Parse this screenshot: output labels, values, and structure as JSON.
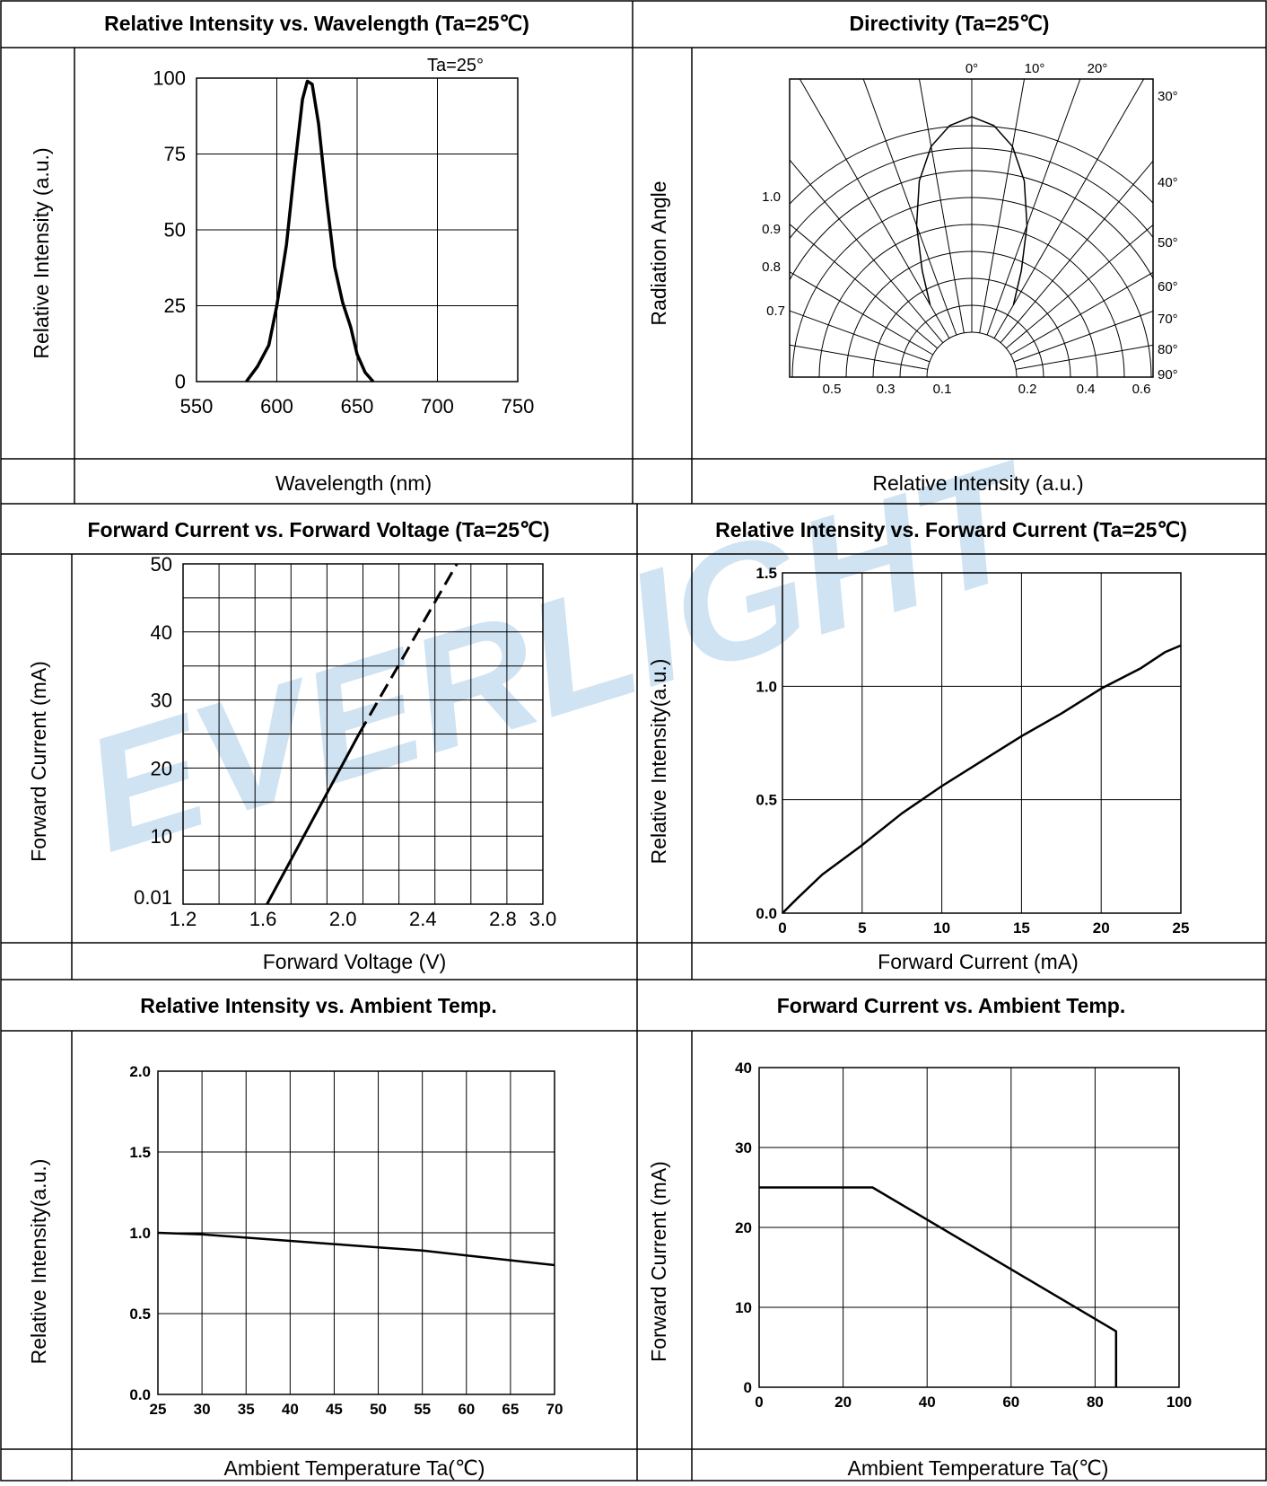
{
  "watermark": "EVERLIGHT",
  "colors": {
    "watermark": "#cfe3f3",
    "border": "#000000",
    "grid": "#000000",
    "curve": "#000000"
  },
  "panels": {
    "spectrum": {
      "title": "Relative Intensity vs. Wavelength (Ta=25℃)",
      "ylabel": "Relative Intensity (a.u.)",
      "xlabel": "Wavelength (nm)"
    },
    "directivity": {
      "title": "Directivity (Ta=25℃)",
      "ylabel": "Radiation Angle",
      "xlabel": "Relative Intensity (a.u.)"
    },
    "ifvf": {
      "title": "Forward Current vs. Forward Voltage (Ta=25℃)",
      "ylabel": "Forward Current (mA)",
      "xlabel": "Forward Voltage (V)"
    },
    "ivif": {
      "title": "Relative Intensity vs. Forward Current (Ta=25℃)",
      "ylabel": "Relative Intensity(a.u.)",
      "xlabel": "Forward Current (mA)"
    },
    "ivtemp": {
      "title": "Relative Intensity vs. Ambient Temp.",
      "ylabel": "Relative Intensity(a.u.)",
      "xlabel": "Ambient Temperature Ta(℃)"
    },
    "iftemp": {
      "title": "Forward Current vs. Ambient Temp.",
      "ylabel": "Forward Current (mA)",
      "xlabel": "Ambient Temperature Ta(℃)"
    }
  },
  "chart_data": [
    {
      "id": "spectrum",
      "type": "line",
      "annotation": "Ta=25°",
      "xlim": [
        550,
        750
      ],
      "ylim": [
        0,
        100
      ],
      "x_ticks": [
        "550",
        "600",
        "650",
        "700",
        "750"
      ],
      "y_ticks": [
        "0",
        "25",
        "50",
        "75",
        "100"
      ],
      "x": [
        581,
        588,
        595,
        600,
        606,
        611,
        616,
        619,
        622,
        626,
        631,
        636,
        641,
        646,
        650,
        655,
        660
      ],
      "y": [
        0,
        5,
        12,
        25,
        45,
        70,
        93,
        99,
        98,
        85,
        60,
        38,
        26,
        18,
        9,
        3,
        0
      ]
    },
    {
      "id": "directivity",
      "type": "polar",
      "angle_labels": [
        "0°",
        "10°",
        "20°",
        "30°",
        "40°",
        "50°",
        "60°",
        "70°",
        "80°",
        "90°"
      ],
      "radius_labels": [
        "1.0",
        "0.9",
        "0.8",
        "0.7"
      ],
      "bottom_labels_left": [
        "0.5",
        "0.3",
        "0.1"
      ],
      "bottom_labels_right": [
        "0.2",
        "0.4",
        "0.6"
      ],
      "angles_deg": [
        0,
        5,
        10,
        15,
        20,
        25,
        30
      ],
      "relative_intensity": [
        1.0,
        0.97,
        0.9,
        0.78,
        0.62,
        0.45,
        0.32
      ]
    },
    {
      "id": "ifvf",
      "type": "line",
      "xlim": [
        1.2,
        3.0
      ],
      "x_ticks": [
        "1.2",
        "1.6",
        "2.0",
        "2.4",
        "2.8",
        "3.0"
      ],
      "y_ticks": [
        "0.01",
        "10",
        "20",
        "30",
        "40",
        "50"
      ],
      "solid": {
        "x": [
          1.62,
          2.08
        ],
        "y": [
          0.01,
          25
        ]
      },
      "dashed": {
        "x": [
          2.08,
          2.57
        ],
        "y": [
          25,
          50
        ]
      }
    },
    {
      "id": "ivif",
      "type": "line",
      "xlim": [
        0,
        25
      ],
      "ylim": [
        0,
        1.5
      ],
      "x_ticks": [
        "0",
        "5",
        "10",
        "15",
        "20",
        "25"
      ],
      "y_ticks": [
        "0.0",
        "0.5",
        "1.0",
        "1.5"
      ],
      "x": [
        0,
        1,
        2.5,
        5,
        7.5,
        10,
        12.5,
        15,
        17.5,
        20,
        22.5,
        24,
        25
      ],
      "y": [
        0,
        0.07,
        0.17,
        0.3,
        0.44,
        0.56,
        0.67,
        0.78,
        0.88,
        0.99,
        1.08,
        1.15,
        1.18
      ]
    },
    {
      "id": "ivtemp",
      "type": "line",
      "xlim": [
        25,
        70
      ],
      "ylim": [
        0,
        2.0
      ],
      "x_ticks": [
        "25",
        "30",
        "35",
        "40",
        "45",
        "50",
        "55",
        "60",
        "65",
        "70"
      ],
      "y_ticks": [
        "0.0",
        "0.5",
        "1.0",
        "1.5",
        "2.0"
      ],
      "x": [
        25,
        30,
        35,
        40,
        45,
        50,
        55,
        60,
        65,
        70
      ],
      "y": [
        1.0,
        0.99,
        0.97,
        0.95,
        0.93,
        0.91,
        0.89,
        0.86,
        0.83,
        0.8
      ]
    },
    {
      "id": "iftemp",
      "type": "line",
      "xlim": [
        0,
        100
      ],
      "ylim": [
        0,
        40
      ],
      "x_ticks": [
        "0",
        "20",
        "40",
        "60",
        "80",
        "100"
      ],
      "y_ticks": [
        "0",
        "10",
        "20",
        "30",
        "40"
      ],
      "x": [
        0,
        27,
        85,
        85
      ],
      "y": [
        25,
        25,
        7,
        0
      ]
    }
  ]
}
